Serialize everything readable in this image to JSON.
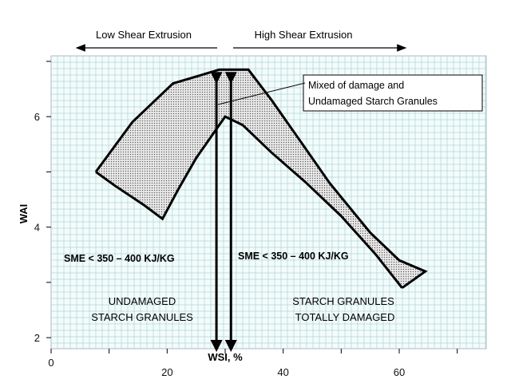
{
  "chart_data": {
    "type": "area",
    "title": "",
    "xlabel": "WSI, %",
    "ylabel": "WAI",
    "xlim": [
      0,
      75
    ],
    "ylim": [
      1.8,
      7.1
    ],
    "x_ticks": [
      0,
      20,
      40,
      60
    ],
    "y_ticks": [
      2,
      4,
      6
    ],
    "grid": true,
    "colors": {
      "grid": "#8fc9c9",
      "plot_bg": "#f4fbfb",
      "band_fill": "#cfcfcf",
      "outline": "#000000"
    },
    "band_region": {
      "upper": {
        "x": [
          7.7,
          14,
          21,
          29,
          34,
          38,
          43,
          48,
          55,
          60,
          64.5
        ],
        "y": [
          5.0,
          5.9,
          6.6,
          6.85,
          6.85,
          6.3,
          5.55,
          4.8,
          3.9,
          3.4,
          3.2
        ]
      },
      "lower": {
        "x": [
          7.7,
          11,
          16,
          19.2,
          22,
          25,
          28,
          30,
          33,
          38,
          44,
          50,
          56,
          60.5
        ],
        "y": [
          5.0,
          4.75,
          4.4,
          4.15,
          4.7,
          5.25,
          5.7,
          6.0,
          5.85,
          5.35,
          4.8,
          4.2,
          3.5,
          2.9
        ]
      }
    },
    "arrows": [
      {
        "x": 28.5,
        "y_from": 6.7,
        "y_to": 1.85
      },
      {
        "x": 31,
        "y_from": 6.7,
        "y_to": 1.85
      }
    ],
    "regime_labels": {
      "low": "Low Shear Extrusion",
      "high": "High Shear Extrusion"
    },
    "annotations": {
      "callout_line1": "Mixed of damage and",
      "callout_line2": "Undamaged Starch Granules",
      "sme_left": "SME < 350 – 400 KJ/KG",
      "sme_right": "SME < 350 – 400 KJ/KG",
      "left_region_line1": "UNDAMAGED",
      "left_region_line2": "STARCH GRANULES",
      "right_region_line1": "STARCH GRANULES",
      "right_region_line2": "TOTALLY DAMAGED"
    }
  }
}
